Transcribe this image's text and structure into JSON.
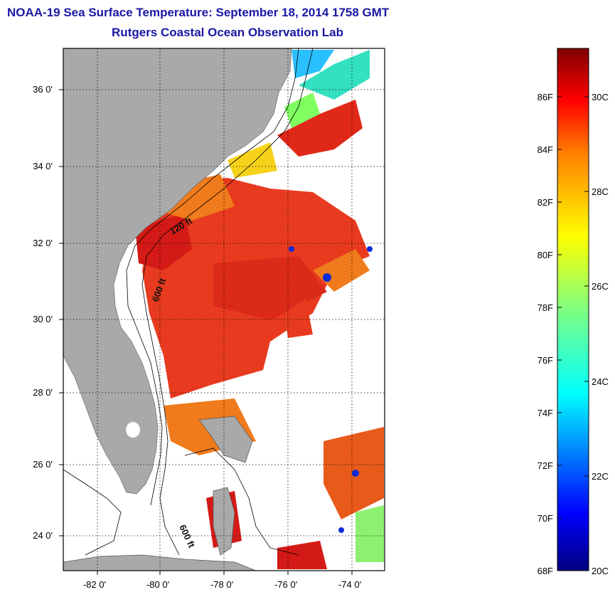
{
  "title": {
    "line1": "NOAA-19 Sea Surface Temperature:  September 18, 2014 1758 GMT",
    "line2": "Rutgers Coastal Ocean Observation Lab"
  },
  "map": {
    "lat_labels": [
      "36 0'",
      "34 0'",
      "32 0'",
      "30 0'",
      "28 0'",
      "26 0'",
      "24 0'"
    ],
    "lon_labels": [
      "-82 0'",
      "-80 0'",
      "-78 0'",
      "-76 0'",
      "-74 0'"
    ],
    "isobath_labels": [
      "120 ft",
      "600 ft",
      "600 ft"
    ],
    "colors": {
      "land": "#a9a9a9",
      "ocean_nodata": "#ffffff",
      "warm": "#e83a1f",
      "hot": "#d41a16",
      "orange": "#f07b1c"
    }
  },
  "colorbar": {
    "f_labels": [
      "86F",
      "84F",
      "82F",
      "80F",
      "78F",
      "76F",
      "74F",
      "72F",
      "70F",
      "68F"
    ],
    "c_labels": [
      "30C",
      "28C",
      "26C",
      "24C",
      "22C",
      "20C"
    ],
    "scale": "jet"
  }
}
